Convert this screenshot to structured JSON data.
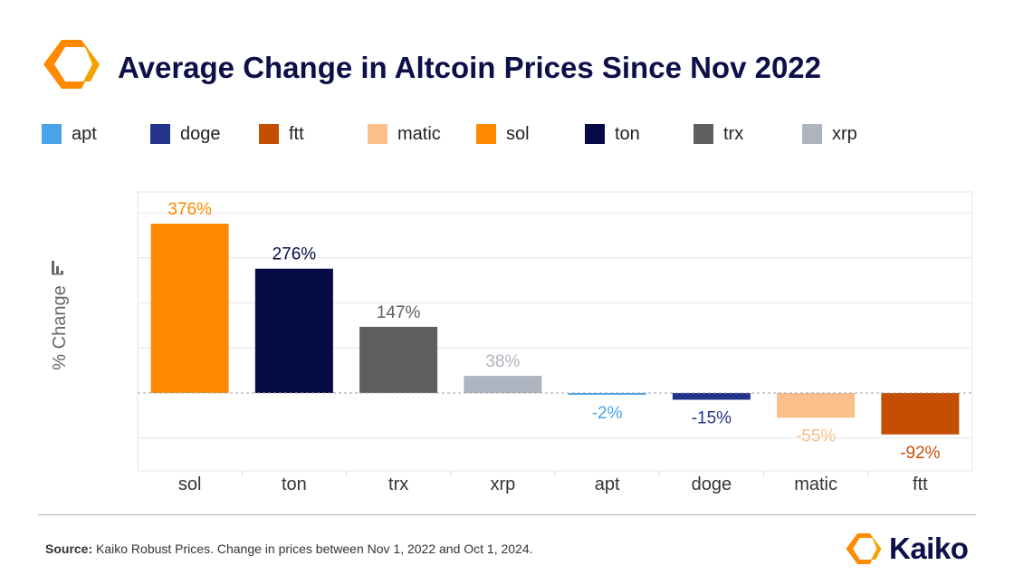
{
  "header": {
    "title": "Average Change in Altcoin Prices Since Nov 2022",
    "logo_icon": "kaiko-hexagon-logo-icon"
  },
  "legend": [
    {
      "label": "apt",
      "color": "#4aa3e8"
    },
    {
      "label": "doge",
      "color": "#23348a"
    },
    {
      "label": "ftt",
      "color": "#c54e05"
    },
    {
      "label": "matic",
      "color": "#fbbf8c"
    },
    {
      "label": "sol",
      "color": "#ff8a00"
    },
    {
      "label": "ton",
      "color": "#070b45"
    },
    {
      "label": "trx",
      "color": "#5f5f5f"
    },
    {
      "label": "xrp",
      "color": "#aeb4bf"
    }
  ],
  "chart_data": {
    "type": "bar",
    "title": "Average Change in Altcoin Prices Since Nov 2022",
    "xlabel": "",
    "ylabel": "% Change",
    "ylim": [
      -100,
      400
    ],
    "grid": true,
    "categories": [
      "sol",
      "ton",
      "trx",
      "xrp",
      "apt",
      "doge",
      "matic",
      "ftt"
    ],
    "values": [
      376,
      276,
      147,
      38,
      -2,
      -15,
      -55,
      -92
    ],
    "value_labels": [
      "376%",
      "276%",
      "147%",
      "38%",
      "-2%",
      "-15%",
      "-55%",
      "-92%"
    ],
    "colors": [
      "#ff8a00",
      "#070b45",
      "#5f5f5f",
      "#aeb4bf",
      "#4aa3e8",
      "#23348a",
      "#fbbf8c",
      "#c54e05"
    ],
    "legend_position": "top"
  },
  "footer": {
    "source_label": "Source:",
    "source_text": " Kaiko Robust Prices. Change in prices between Nov 1, 2022 and Oct 1, 2024.",
    "brand": "Kaiko",
    "brand_icon": "kaiko-hexagon-logo-icon"
  }
}
